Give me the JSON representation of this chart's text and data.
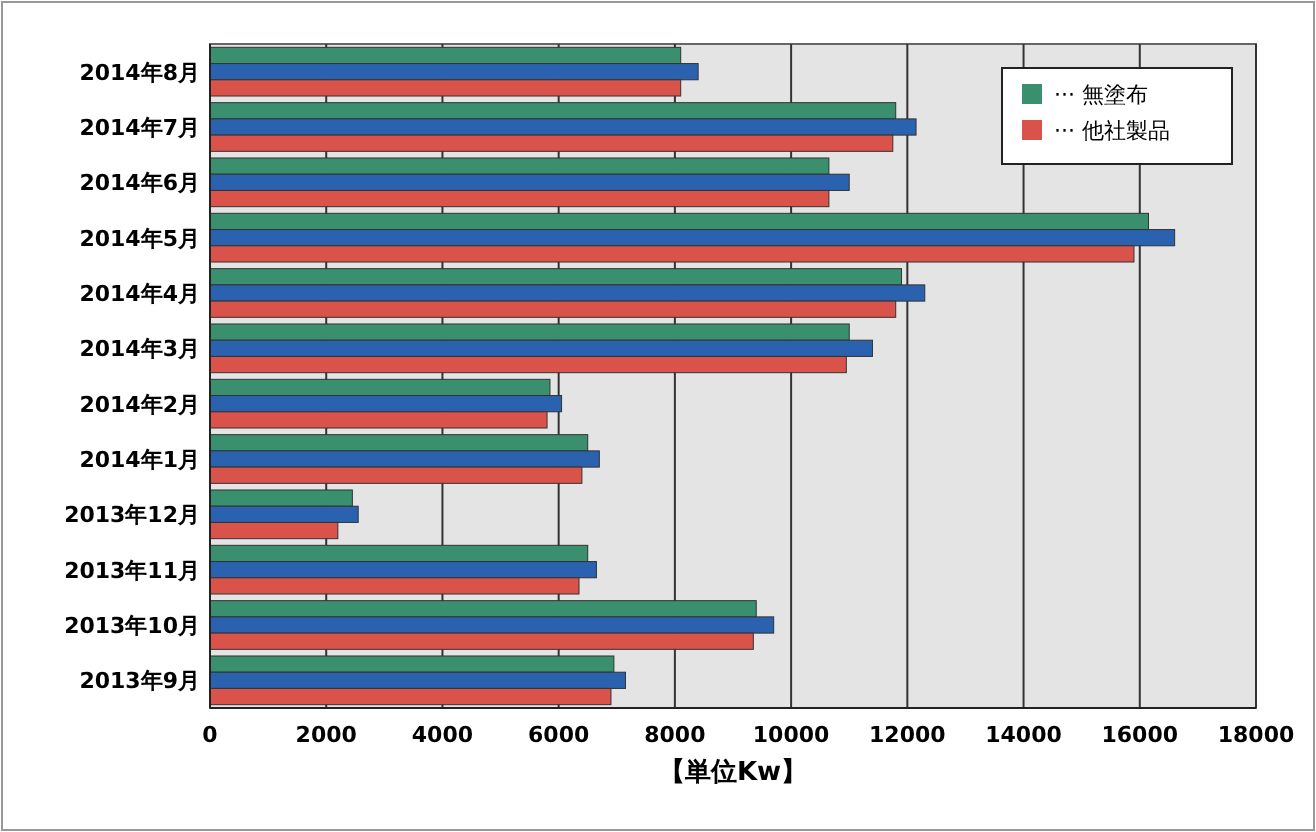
{
  "chart_data": {
    "type": "bar",
    "orientation": "horizontal",
    "xlabel": "【単位Kw】",
    "categories": [
      "2014年8月",
      "2014年7月",
      "2014年6月",
      "2014年5月",
      "2014年4月",
      "2014年3月",
      "2014年2月",
      "2014年1月",
      "2013年12月",
      "2013年11月",
      "2013年10月",
      "2013年9月"
    ],
    "series": [
      {
        "name": "··· 無塗布",
        "color": "#3a8f6e",
        "values": [
          8100,
          11800,
          10650,
          16150,
          11900,
          11000,
          5850,
          6500,
          2450,
          6500,
          9400,
          6950
        ]
      },
      {
        "color": "#2a62b0",
        "values": [
          8400,
          12150,
          11000,
          16600,
          12300,
          11400,
          6050,
          6700,
          2550,
          6650,
          9700,
          7150
        ]
      },
      {
        "name": "··· 他社製品",
        "color": "#d9534a",
        "values": [
          8100,
          11750,
          10650,
          15900,
          11800,
          10950,
          5800,
          6400,
          2200,
          6350,
          9350,
          6900
        ]
      }
    ],
    "xlim": [
      0,
      18000
    ],
    "xticks": [
      0,
      2000,
      4000,
      6000,
      8000,
      10000,
      12000,
      14000,
      16000,
      18000
    ],
    "grid": "x",
    "legend": "top right"
  }
}
